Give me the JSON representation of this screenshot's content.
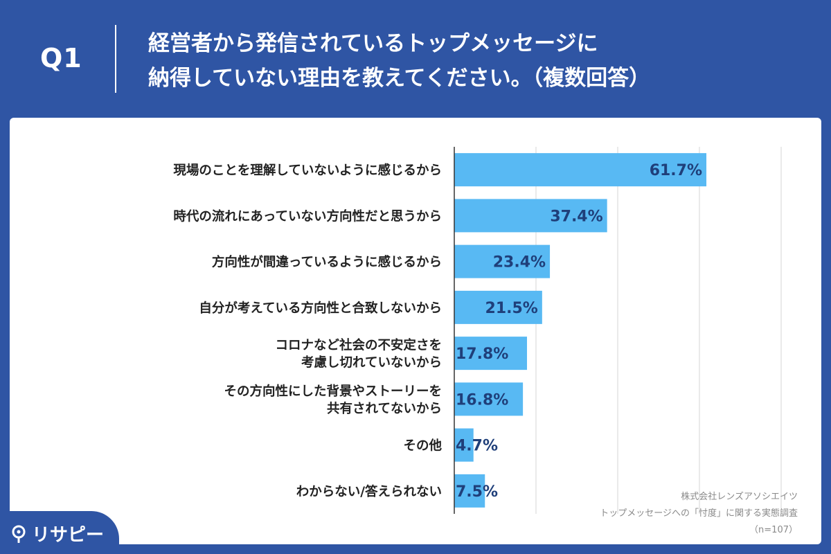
{
  "header": {
    "q_label": "Q1",
    "question_line1": "経営者から発信されているトップメッセージに",
    "question_line2": "納得していない理由を教えてください。（複数回答）"
  },
  "colors": {
    "background": "#2f55a4",
    "bar": "#58b9f3",
    "value_text": "#1f3f7a",
    "grid": "#d6d6d6"
  },
  "chart_data": {
    "type": "bar",
    "orientation": "horizontal",
    "unit": "%",
    "xlim": [
      0,
      80
    ],
    "grid": true,
    "categories": [
      [
        "現場のことを理解していないように感じるから"
      ],
      [
        "時代の流れにあっていない方向性だと思うから"
      ],
      [
        "方向性が間違っているように感じるから"
      ],
      [
        "自分が考えている方向性と合致しないから"
      ],
      [
        "コロナなど社会の不安定さを",
        "考慮し切れていないから"
      ],
      [
        "その方向性にした背景やストーリーを",
        "共有されてないから"
      ],
      [
        "その他"
      ],
      [
        "わからない/答えられない"
      ]
    ],
    "values": [
      61.7,
      37.4,
      23.4,
      21.5,
      17.8,
      16.8,
      4.7,
      7.5
    ],
    "value_labels": [
      "61.7%",
      "37.4%",
      "23.4%",
      "21.5%",
      "17.8%",
      "16.8%",
      "4.7%",
      "7.5%"
    ]
  },
  "footnote": {
    "line1": "株式会社レンズアソシエイツ",
    "line2": "トップメッセージへの「忖度」に関する実態調査",
    "line3": "（n=107）"
  },
  "brand": {
    "name": "リサピー",
    "icon": "pin-icon"
  }
}
